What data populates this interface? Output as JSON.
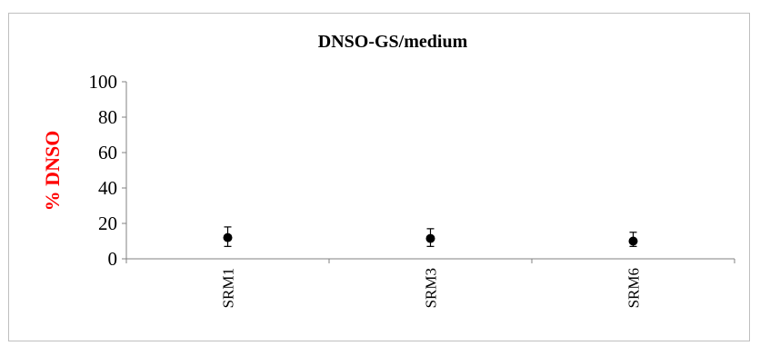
{
  "chart_data": {
    "type": "scatter",
    "title": "DNSO-GS/medium",
    "xlabel": "",
    "ylabel": "% DNSO",
    "ylabel_color": "#ff0000",
    "categories": [
      "SRM1",
      "SRM3",
      "SRM6"
    ],
    "values": [
      12,
      11.5,
      10
    ],
    "error_upper": [
      18,
      17,
      15
    ],
    "error_lower": [
      7,
      7,
      7
    ],
    "ylim": [
      0,
      100
    ],
    "yticks": [
      0,
      20,
      40,
      60,
      80,
      100
    ],
    "grid": false,
    "legend": "none",
    "marker_color": "#000000"
  }
}
